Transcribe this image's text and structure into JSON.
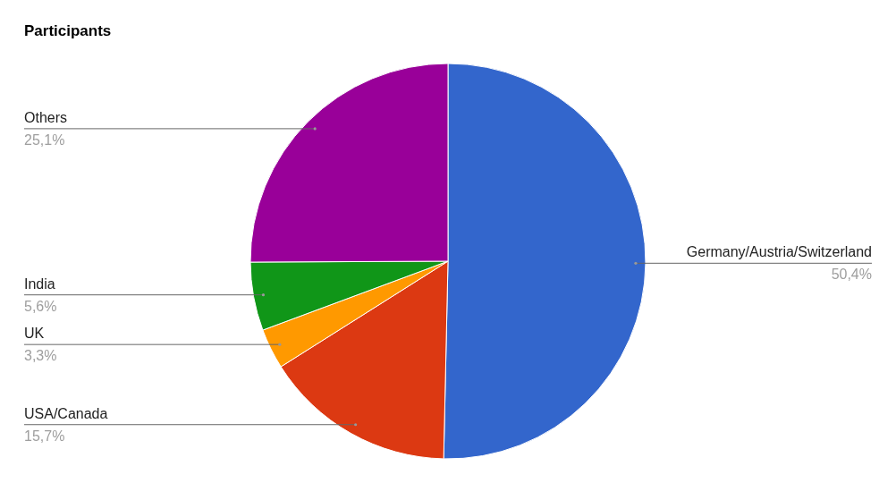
{
  "chart_data": {
    "type": "pie",
    "title": "Participants",
    "categories": [
      "Germany/Austria/Switzerland",
      "USA/Canada",
      "UK",
      "India",
      "Others"
    ],
    "values": [
      50.4,
      15.7,
      3.3,
      5.6,
      25.1
    ],
    "colors": [
      "#3366cc",
      "#dc3912",
      "#ff9900",
      "#109618",
      "#990099"
    ],
    "value_labels": [
      "50,4%",
      "15,7%",
      "3,3%",
      "5,6%",
      "25,1%"
    ]
  }
}
